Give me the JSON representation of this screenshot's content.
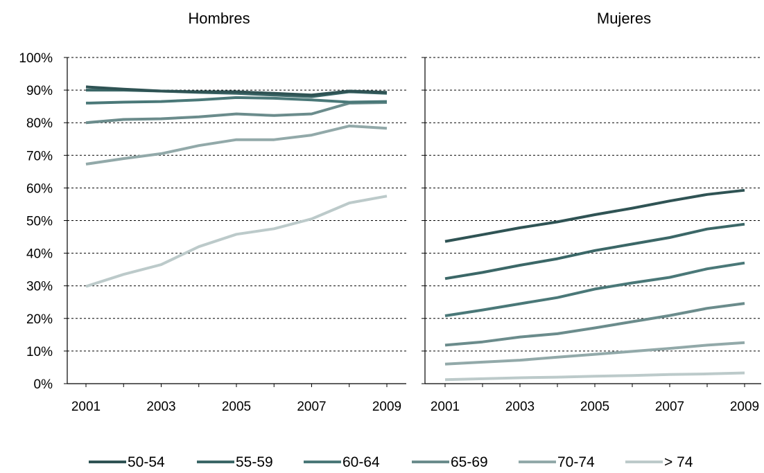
{
  "chart_data": [
    {
      "type": "line",
      "title": "Hombres",
      "x": [
        2001,
        2002,
        2003,
        2004,
        2005,
        2006,
        2007,
        2008,
        2009
      ],
      "x_tick_labels": [
        "2001",
        "2003",
        "2005",
        "2007",
        "2009"
      ],
      "ylim": [
        0,
        100
      ],
      "y_tick_labels": [
        "0%",
        "10%",
        "20%",
        "30%",
        "40%",
        "50%",
        "60%",
        "70%",
        "80%",
        "90%",
        "100%"
      ],
      "grid": "horizontal dashed",
      "series": [
        {
          "name": "50-54",
          "color": "#2f5354",
          "values": [
            91,
            90.3,
            89.7,
            89.5,
            89.5,
            89,
            88.5,
            89.7,
            89.3
          ]
        },
        {
          "name": "55-59",
          "color": "#3b6767",
          "values": [
            90,
            90,
            89.7,
            89.3,
            89,
            88.5,
            88,
            89.5,
            89
          ]
        },
        {
          "name": "60-64",
          "color": "#4a7878",
          "values": [
            86,
            86.3,
            86.5,
            87,
            87.7,
            87.5,
            87,
            86.3,
            86.5
          ]
        },
        {
          "name": "65-69",
          "color": "#6b8c8c",
          "values": [
            80,
            81,
            81.2,
            81.8,
            82.7,
            82.2,
            82.7,
            86,
            86.2
          ]
        },
        {
          "name": "70-74",
          "color": "#92a9a9",
          "values": [
            67.3,
            69,
            70.5,
            73,
            74.8,
            74.8,
            76.2,
            79,
            78.3
          ]
        },
        {
          "name": "> 74",
          "color": "#bccaca",
          "values": [
            29.8,
            33.5,
            36.5,
            42,
            45.8,
            47.5,
            50.5,
            55.4,
            57.5
          ]
        }
      ]
    },
    {
      "type": "line",
      "title": "Mujeres",
      "x": [
        2001,
        2002,
        2003,
        2004,
        2005,
        2006,
        2007,
        2008,
        2009
      ],
      "x_tick_labels": [
        "2001",
        "2003",
        "2005",
        "2007",
        "2009"
      ],
      "ylim": [
        0,
        100
      ],
      "grid": "horizontal dashed",
      "series": [
        {
          "name": "50-54",
          "color": "#2f5354",
          "values": [
            43.6,
            45.7,
            47.8,
            49.6,
            51.8,
            53.8,
            56,
            58,
            59.3
          ]
        },
        {
          "name": "55-59",
          "color": "#3b6767",
          "values": [
            32.2,
            34.1,
            36.3,
            38.3,
            40.8,
            42.8,
            44.8,
            47.4,
            48.9
          ]
        },
        {
          "name": "60-64",
          "color": "#4a7878",
          "values": [
            20.8,
            22.6,
            24.5,
            26.4,
            29,
            30.9,
            32.6,
            35.2,
            37
          ]
        },
        {
          "name": "65-69",
          "color": "#6b8c8c",
          "values": [
            11.8,
            12.8,
            14.3,
            15.3,
            17.1,
            19,
            20.9,
            23.1,
            24.6
          ]
        },
        {
          "name": "70-74",
          "color": "#92a9a9",
          "values": [
            6,
            6.6,
            7.2,
            8.1,
            9,
            9.9,
            10.8,
            11.8,
            12.6
          ]
        },
        {
          "name": "> 74",
          "color": "#bccaca",
          "values": [
            1.2,
            1.5,
            1.8,
            2,
            2.3,
            2.5,
            2.8,
            3,
            3.3
          ]
        }
      ]
    }
  ],
  "legend": {
    "position": "bottom",
    "items": [
      {
        "label": "50-54",
        "color": "#2f5354"
      },
      {
        "label": "55-59",
        "color": "#3b6767"
      },
      {
        "label": "60-64",
        "color": "#4a7878"
      },
      {
        "label": "65-69",
        "color": "#6b8c8c"
      },
      {
        "label": "70-74",
        "color": "#92a9a9"
      },
      {
        "label": "> 74",
        "color": "#bccaca"
      }
    ]
  }
}
